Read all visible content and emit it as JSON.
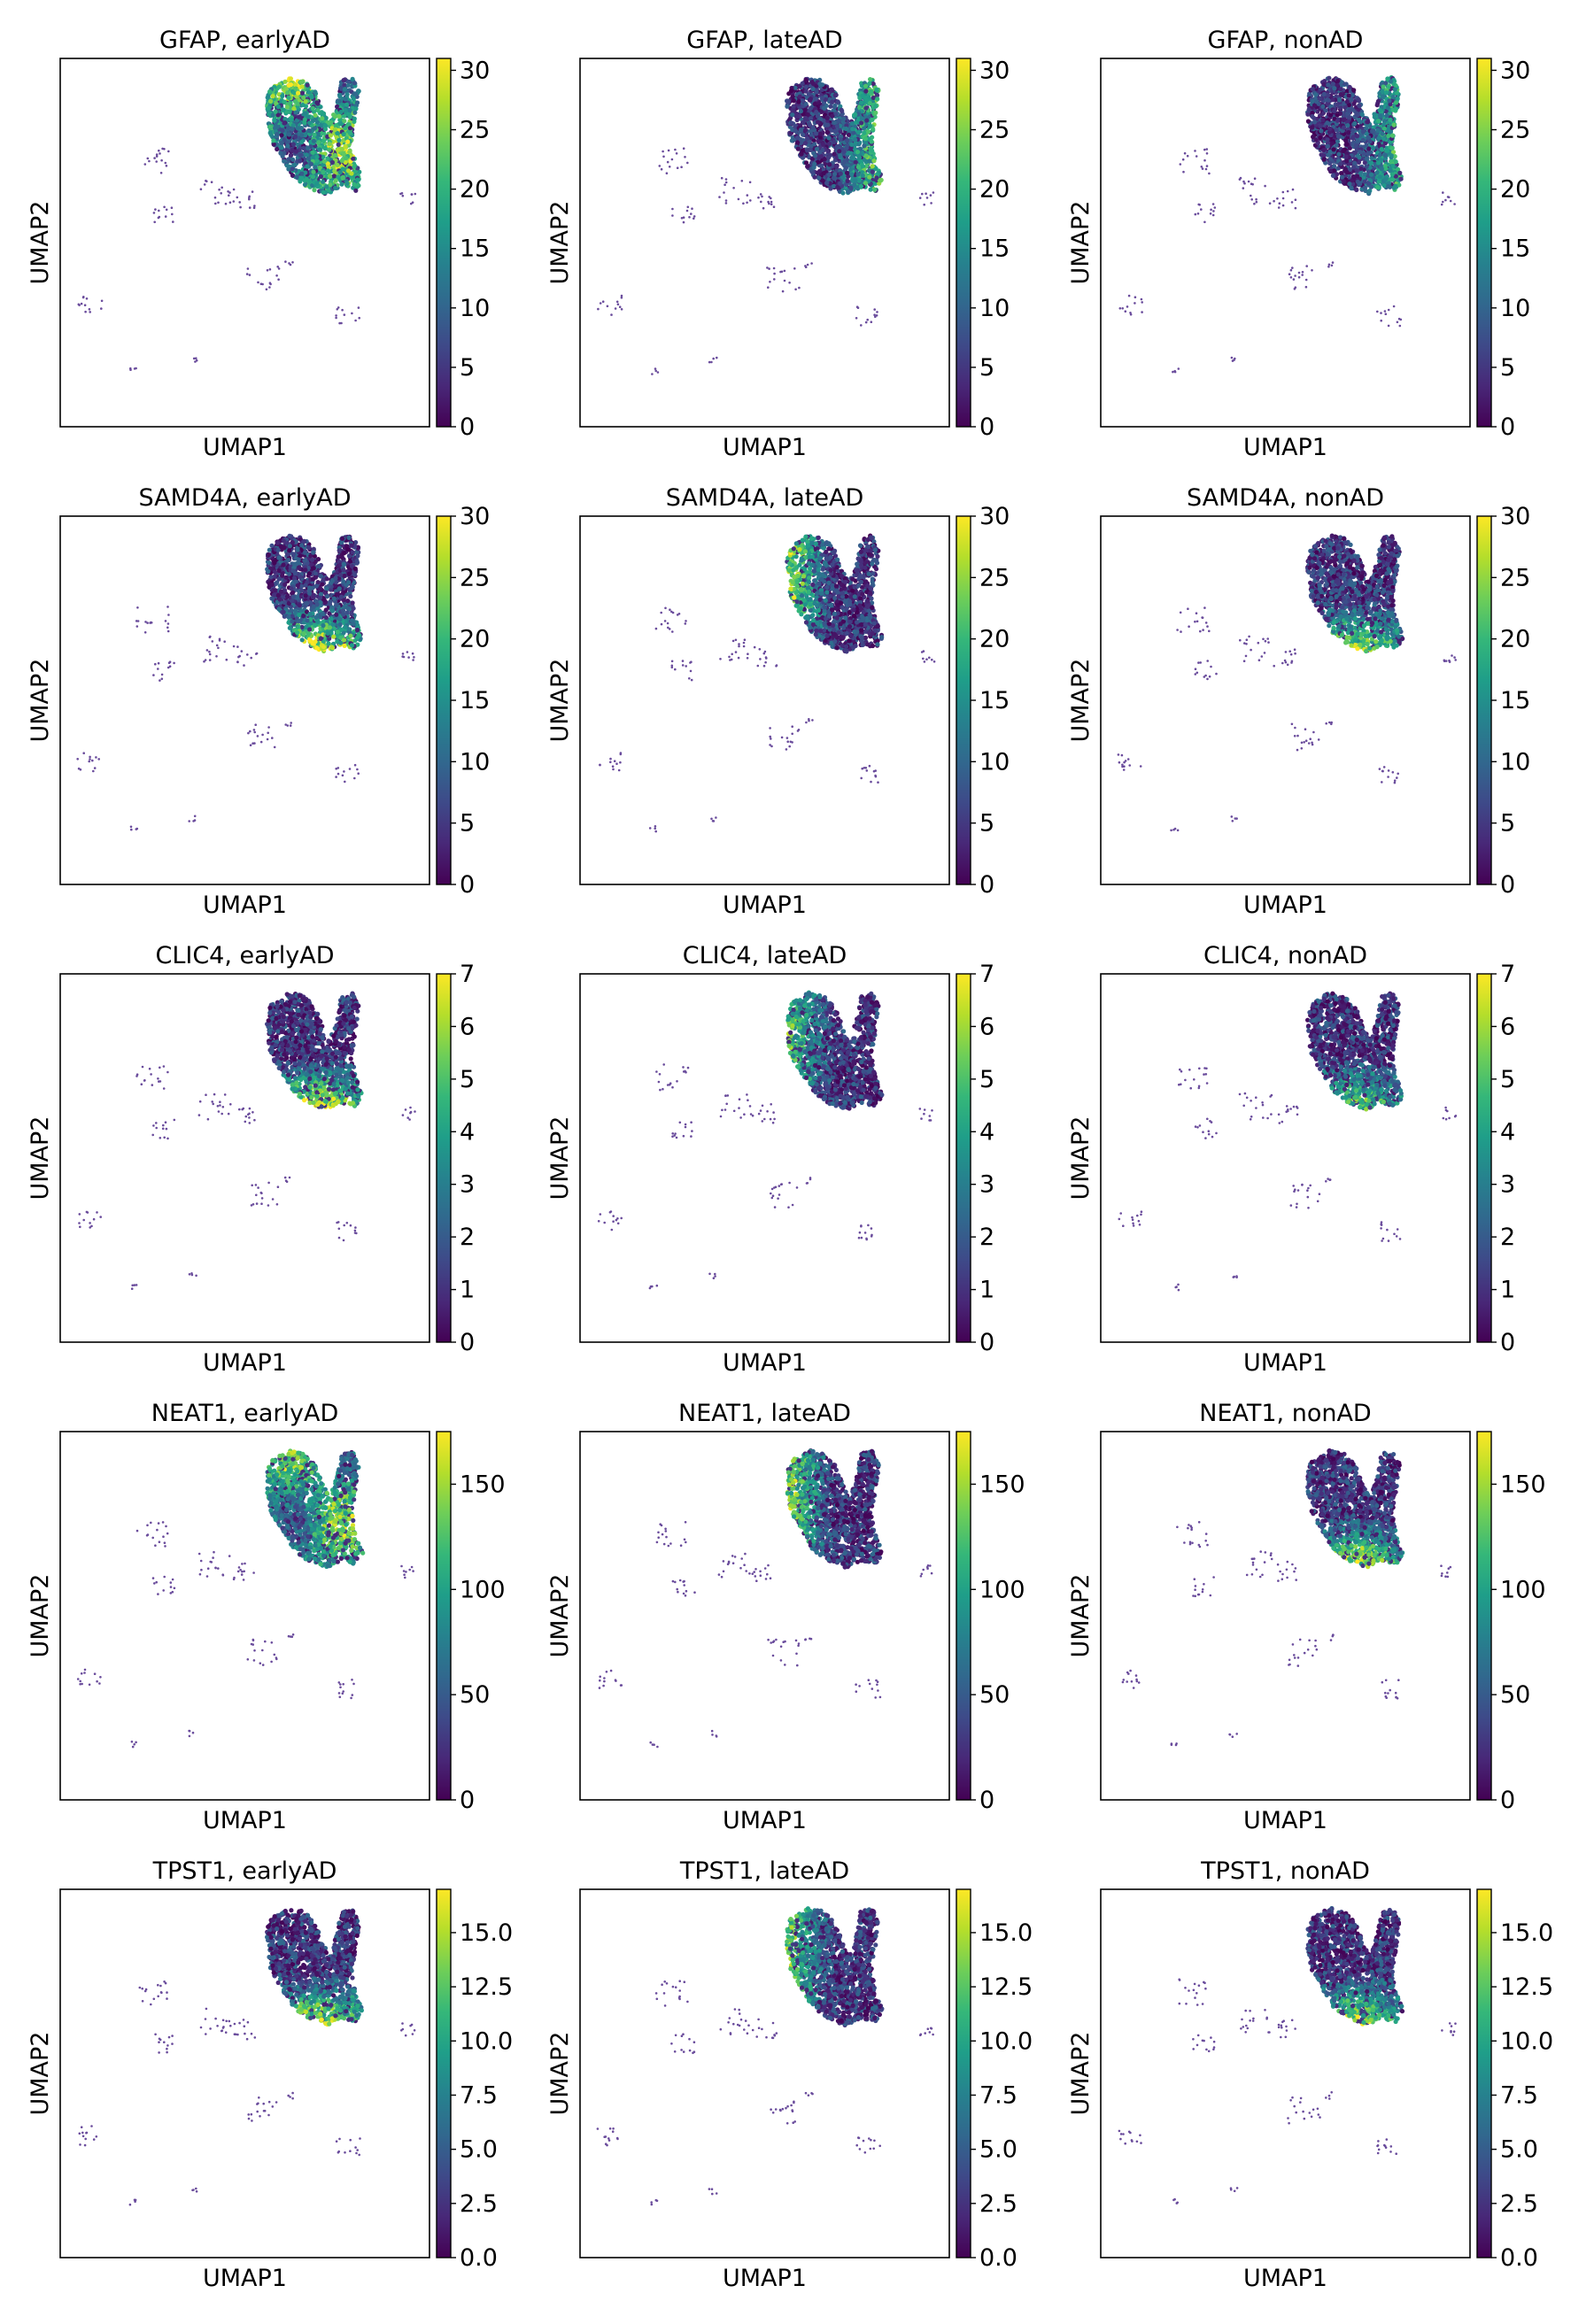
{
  "figure": {
    "xlabel": "UMAP1",
    "ylabel": "UMAP2",
    "colormap": "viridis",
    "viridis_stops": [
      "#440154",
      "#482878",
      "#3e4a89",
      "#31688e",
      "#26828e",
      "#1f9e89",
      "#35b779",
      "#6ece58",
      "#b5de2b",
      "#fde725"
    ],
    "point_color_zero": "#6a4c9c"
  },
  "chart_data": [
    {
      "type": "scatter",
      "title": "GFAP, earlyAD",
      "gene": "GFAP",
      "condition": "earlyAD",
      "xlabel": "UMAP1",
      "ylabel": "UMAP2",
      "colorbar": {
        "min": 0,
        "max": 31,
        "ticks": [
          "0",
          "5",
          "10",
          "15",
          "20",
          "25",
          "30"
        ]
      },
      "hot_region": "center",
      "hot_level": 0.8
    },
    {
      "type": "scatter",
      "title": "GFAP, lateAD",
      "gene": "GFAP",
      "condition": "lateAD",
      "xlabel": "UMAP1",
      "ylabel": "UMAP2",
      "colorbar": {
        "min": 0,
        "max": 31,
        "ticks": [
          "0",
          "5",
          "10",
          "15",
          "20",
          "25",
          "30"
        ]
      },
      "hot_region": "right",
      "hot_level": 0.6
    },
    {
      "type": "scatter",
      "title": "GFAP, nonAD",
      "gene": "GFAP",
      "condition": "nonAD",
      "xlabel": "UMAP1",
      "ylabel": "UMAP2",
      "colorbar": {
        "min": 0,
        "max": 31,
        "ticks": [
          "0",
          "5",
          "10",
          "15",
          "20",
          "25",
          "30"
        ]
      },
      "hot_region": "right",
      "hot_level": 0.5
    },
    {
      "type": "scatter",
      "title": "SAMD4A, earlyAD",
      "gene": "SAMD4A",
      "condition": "earlyAD",
      "xlabel": "UMAP1",
      "ylabel": "UMAP2",
      "colorbar": {
        "min": 0,
        "max": 30,
        "ticks": [
          "0",
          "5",
          "10",
          "15",
          "20",
          "25",
          "30"
        ]
      },
      "hot_region": "bottom",
      "hot_level": 0.9
    },
    {
      "type": "scatter",
      "title": "SAMD4A, lateAD",
      "gene": "SAMD4A",
      "condition": "lateAD",
      "xlabel": "UMAP1",
      "ylabel": "UMAP2",
      "colorbar": {
        "min": 0,
        "max": 30,
        "ticks": [
          "0",
          "5",
          "10",
          "15",
          "20",
          "25",
          "30"
        ]
      },
      "hot_region": "left",
      "hot_level": 0.7
    },
    {
      "type": "scatter",
      "title": "SAMD4A, nonAD",
      "gene": "SAMD4A",
      "condition": "nonAD",
      "xlabel": "UMAP1",
      "ylabel": "UMAP2",
      "colorbar": {
        "min": 0,
        "max": 30,
        "ticks": [
          "0",
          "5",
          "10",
          "15",
          "20",
          "25",
          "30"
        ]
      },
      "hot_region": "bottom",
      "hot_level": 0.8
    },
    {
      "type": "scatter",
      "title": "CLIC4, earlyAD",
      "gene": "CLIC4",
      "condition": "earlyAD",
      "xlabel": "UMAP1",
      "ylabel": "UMAP2",
      "colorbar": {
        "min": 0,
        "max": 7,
        "ticks": [
          "0",
          "1",
          "2",
          "3",
          "4",
          "5",
          "6",
          "7"
        ]
      },
      "hot_region": "bottom",
      "hot_level": 0.95
    },
    {
      "type": "scatter",
      "title": "CLIC4, lateAD",
      "gene": "CLIC4",
      "condition": "lateAD",
      "xlabel": "UMAP1",
      "ylabel": "UMAP2",
      "colorbar": {
        "min": 0,
        "max": 7,
        "ticks": [
          "0",
          "1",
          "2",
          "3",
          "4",
          "5",
          "6",
          "7"
        ]
      },
      "hot_region": "left",
      "hot_level": 0.55
    },
    {
      "type": "scatter",
      "title": "CLIC4, nonAD",
      "gene": "CLIC4",
      "condition": "nonAD",
      "xlabel": "UMAP1",
      "ylabel": "UMAP2",
      "colorbar": {
        "min": 0,
        "max": 7,
        "ticks": [
          "0",
          "1",
          "2",
          "3",
          "4",
          "5",
          "6",
          "7"
        ]
      },
      "hot_region": "bottom",
      "hot_level": 0.7
    },
    {
      "type": "scatter",
      "title": "NEAT1, earlyAD",
      "gene": "NEAT1",
      "condition": "earlyAD",
      "xlabel": "UMAP1",
      "ylabel": "UMAP2",
      "colorbar": {
        "min": 0,
        "max": 175,
        "ticks": [
          "0",
          "50",
          "100",
          "150"
        ],
        "tick_values": [
          0,
          50,
          100,
          150
        ]
      },
      "hot_region": "center",
      "hot_level": 0.75
    },
    {
      "type": "scatter",
      "title": "NEAT1, lateAD",
      "gene": "NEAT1",
      "condition": "lateAD",
      "xlabel": "UMAP1",
      "ylabel": "UMAP2",
      "colorbar": {
        "min": 0,
        "max": 175,
        "ticks": [
          "0",
          "50",
          "100",
          "150"
        ],
        "tick_values": [
          0,
          50,
          100,
          150
        ]
      },
      "hot_region": "left",
      "hot_level": 0.7
    },
    {
      "type": "scatter",
      "title": "NEAT1, nonAD",
      "gene": "NEAT1",
      "condition": "nonAD",
      "xlabel": "UMAP1",
      "ylabel": "UMAP2",
      "colorbar": {
        "min": 0,
        "max": 175,
        "ticks": [
          "0",
          "50",
          "100",
          "150"
        ],
        "tick_values": [
          0,
          50,
          100,
          150
        ]
      },
      "hot_region": "bottom",
      "hot_level": 0.85
    },
    {
      "type": "scatter",
      "title": "TPST1, earlyAD",
      "gene": "TPST1",
      "condition": "earlyAD",
      "xlabel": "UMAP1",
      "ylabel": "UMAP2",
      "colorbar": {
        "min": 0,
        "max": 17,
        "ticks": [
          "0.0",
          "2.5",
          "5.0",
          "7.5",
          "10.0",
          "12.5",
          "15.0"
        ],
        "tick_values": [
          0,
          2.5,
          5,
          7.5,
          10,
          12.5,
          15
        ]
      },
      "hot_region": "bottom",
      "hot_level": 0.85
    },
    {
      "type": "scatter",
      "title": "TPST1, lateAD",
      "gene": "TPST1",
      "condition": "lateAD",
      "xlabel": "UMAP1",
      "ylabel": "UMAP2",
      "colorbar": {
        "min": 0,
        "max": 17,
        "ticks": [
          "0.0",
          "2.5",
          "5.0",
          "7.5",
          "10.0",
          "12.5",
          "15.0"
        ],
        "tick_values": [
          0,
          2.5,
          5,
          7.5,
          10,
          12.5,
          15
        ]
      },
      "hot_region": "left",
      "hot_level": 0.6
    },
    {
      "type": "scatter",
      "title": "TPST1, nonAD",
      "gene": "TPST1",
      "condition": "nonAD",
      "xlabel": "UMAP1",
      "ylabel": "UMAP2",
      "colorbar": {
        "min": 0,
        "max": 17,
        "ticks": [
          "0.0",
          "2.5",
          "5.0",
          "7.5",
          "10.0",
          "12.5",
          "15.0"
        ],
        "tick_values": [
          0,
          2.5,
          5,
          7.5,
          10,
          12.5,
          15
        ]
      },
      "hot_region": "bottom",
      "hot_level": 0.8
    }
  ]
}
